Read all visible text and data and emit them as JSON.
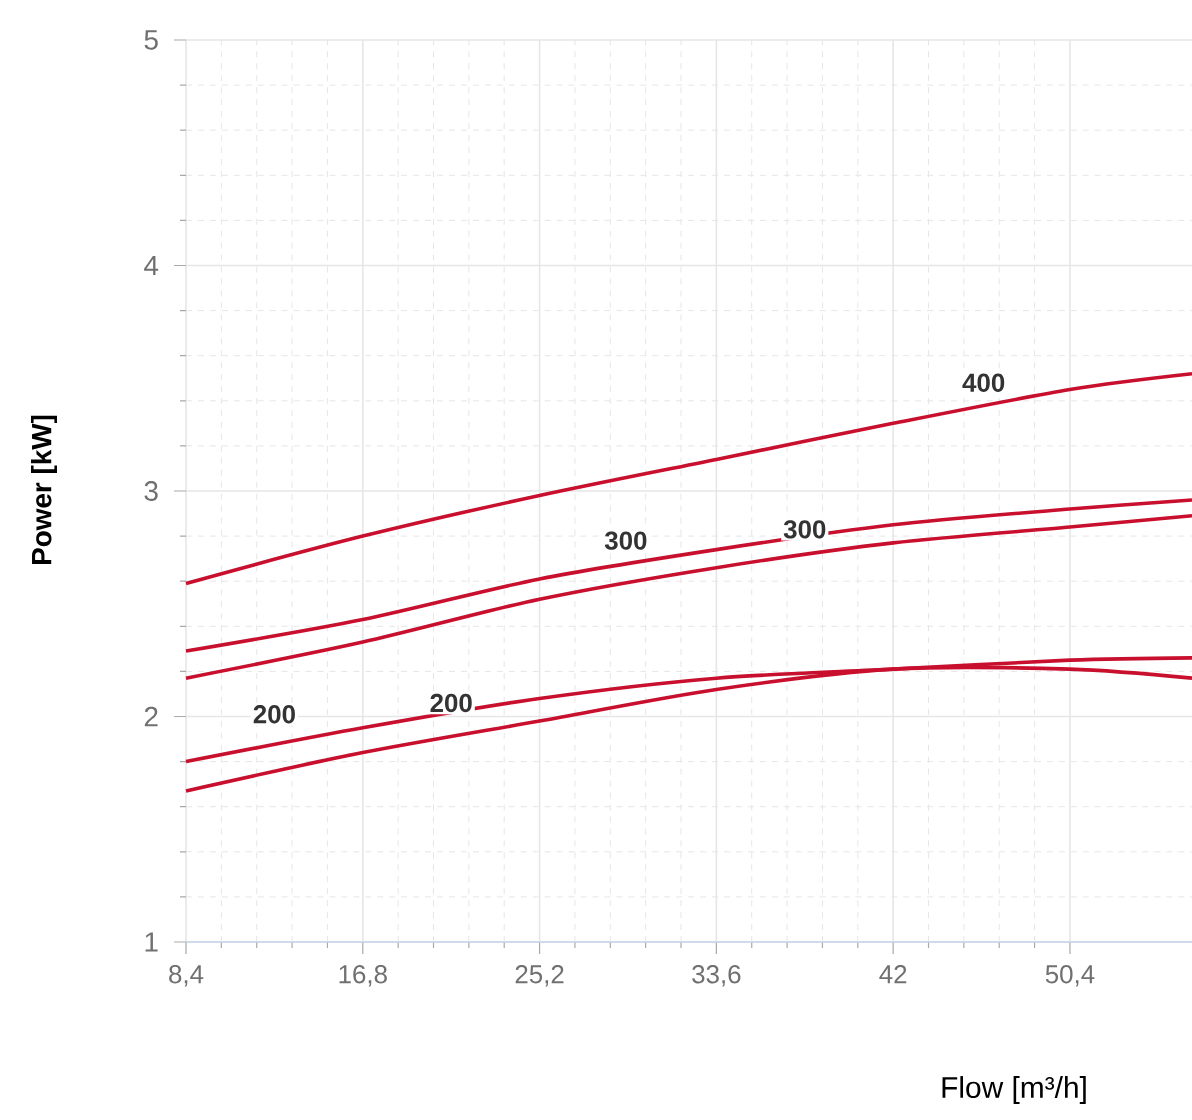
{
  "chart_data": {
    "type": "line",
    "xlabel": "Flow [m³/h]",
    "ylabel": "Power [kW]",
    "xlim": [
      8.4,
      56.2
    ],
    "ylim": [
      1,
      5
    ],
    "xticks": [
      {
        "value": 8.4,
        "label": "8,4"
      },
      {
        "value": 16.8,
        "label": "16,8"
      },
      {
        "value": 25.2,
        "label": "25,2"
      },
      {
        "value": 33.6,
        "label": "33,6"
      },
      42,
      {
        "value": 50.4,
        "label": "50,4"
      }
    ],
    "yticks": [
      1,
      2,
      3,
      4,
      5
    ],
    "grid": true,
    "marker": "none",
    "line_style": "solid",
    "series": [
      {
        "color": "#c8102e",
        "x": [
          8.4,
          16.8,
          25.2,
          33.6,
          42,
          50.4,
          56.2
        ],
        "values": [
          2.59,
          2.8,
          2.98,
          3.14,
          3.3,
          3.45,
          3.52
        ]
      },
      {
        "color": "#c8102e",
        "x": [
          8.4,
          16.8,
          25.2,
          33.6,
          42,
          50.4,
          56.2
        ],
        "values": [
          2.29,
          2.43,
          2.61,
          2.74,
          2.85,
          2.92,
          2.96
        ]
      },
      {
        "color": "#c8102e",
        "x": [
          8.4,
          16.8,
          25.2,
          33.6,
          42,
          50.4,
          56.2
        ],
        "values": [
          2.17,
          2.33,
          2.52,
          2.66,
          2.77,
          2.84,
          2.89
        ]
      },
      {
        "color": "#c8102e",
        "x": [
          8.4,
          16.8,
          25.2,
          33.6,
          42,
          50.4,
          56.2
        ],
        "values": [
          1.8,
          1.95,
          2.08,
          2.17,
          2.21,
          2.25,
          2.26
        ]
      },
      {
        "color": "#c8102e",
        "x": [
          8.4,
          16.8,
          25.2,
          33.6,
          42,
          50.4,
          56.2
        ],
        "values": [
          1.67,
          1.84,
          1.98,
          2.12,
          2.21,
          2.21,
          2.17
        ]
      }
    ],
    "annotations": [
      {
        "text": "400",
        "x": 46.3,
        "y": 3.48
      },
      {
        "text": "300",
        "x": 29.3,
        "y": 2.78
      },
      {
        "text": "300",
        "x": 37.8,
        "y": 2.83
      },
      {
        "text": "200",
        "x": 12.6,
        "y": 2.01
      },
      {
        "text": "200",
        "x": 21,
        "y": 2.06
      }
    ]
  }
}
